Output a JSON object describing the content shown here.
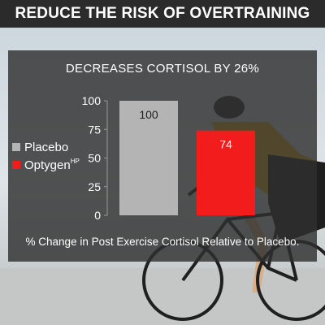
{
  "header": {
    "title": "REDUCE THE RISK OF OVERTRAINING"
  },
  "colors": {
    "placebo": "#b4b4b4",
    "optygen": "#f21c1c",
    "panel": "#303030",
    "banner": "#2b2b2b"
  },
  "chart_data": {
    "type": "bar",
    "title": "DECREASES CORTISOL BY 26%",
    "categories": [
      "Placebo",
      "Optygen"
    ],
    "values": [
      100,
      74
    ],
    "data_labels": [
      "100",
      "74"
    ],
    "series_colors": [
      "#b4b4b4",
      "#f21c1c"
    ],
    "ylim": [
      0,
      100
    ],
    "yticks": [
      "0",
      "25",
      "50",
      "75",
      "100"
    ],
    "legend": {
      "placement": "left",
      "items": [
        {
          "label": "Placebo",
          "superscript": ""
        },
        {
          "label": "Optygen",
          "superscript": "HP"
        }
      ]
    },
    "caption": "% Change in Post Exercise Cortisol Relative to Placebo.",
    "grid": false
  }
}
